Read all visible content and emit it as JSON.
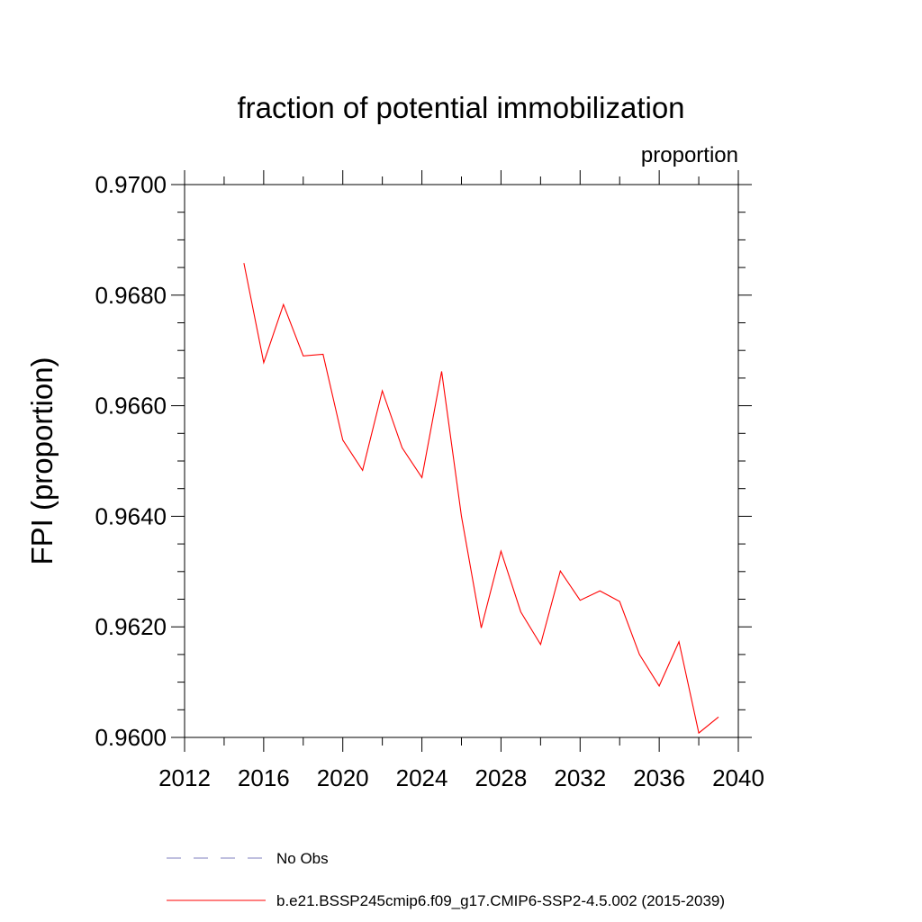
{
  "chart_data": {
    "type": "line",
    "title": "fraction of potential immobilization",
    "units_label": "proportion",
    "ylabel": "FPI  (proportion)",
    "xlabel": "",
    "xlim": [
      2012,
      2040
    ],
    "ylim": [
      0.96,
      0.97
    ],
    "x_ticks": [
      2012,
      2016,
      2020,
      2024,
      2028,
      2032,
      2036,
      2040
    ],
    "y_ticks": [
      0.96,
      0.962,
      0.964,
      0.966,
      0.968,
      0.97
    ],
    "y_tick_labels": [
      "0.9600",
      "0.9620",
      "0.9640",
      "0.9660",
      "0.9680",
      "0.9700"
    ],
    "grid": false,
    "legend_position": "bottom",
    "series": [
      {
        "name": "b.e21.BSSP245cmip6.f09_g17.CMIP6-SSP2-4.5.002 (2015-2039)",
        "color": "#ff0000",
        "dash": "solid",
        "x": [
          2015,
          2016,
          2017,
          2018,
          2019,
          2020,
          2021,
          2022,
          2023,
          2024,
          2025,
          2026,
          2027,
          2028,
          2029,
          2030,
          2031,
          2032,
          2033,
          2034,
          2035,
          2036,
          2037,
          2038,
          2039
        ],
        "y": [
          0.96858,
          0.96678,
          0.96783,
          0.9669,
          0.96693,
          0.96538,
          0.96483,
          0.96627,
          0.96524,
          0.9647,
          0.96662,
          0.964,
          0.96198,
          0.96337,
          0.96227,
          0.96168,
          0.96301,
          0.96248,
          0.96265,
          0.96246,
          0.9615,
          0.96093,
          0.96173,
          0.96008,
          0.96037
        ]
      }
    ],
    "legend_extra": [
      {
        "name": "No Obs",
        "color": "#7f7fbf",
        "dash": "dashed"
      }
    ]
  }
}
